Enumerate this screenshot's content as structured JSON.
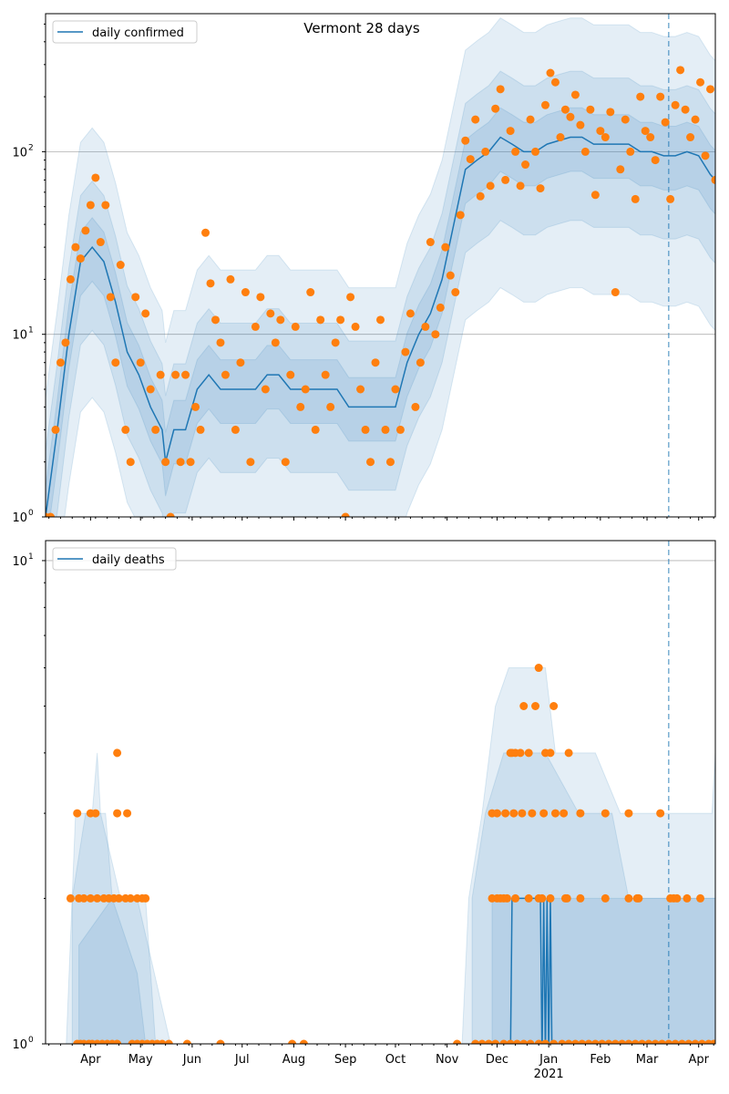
{
  "title": "Vermont 28 days",
  "colors": {
    "line": "#1f77b4",
    "points": "#ff7f0e",
    "band": "#1f77b4",
    "grid": "#b0b0b0"
  },
  "chart_data": [
    {
      "type": "line",
      "panel": "top",
      "legend": "daily confirmed",
      "legend_position": "top-left",
      "yscale": "log",
      "ylim": [
        1,
        570
      ],
      "yticks": [
        {
          "value": 1,
          "label": "10",
          "exp": "0"
        },
        {
          "value": 10,
          "label": "10",
          "exp": "1"
        },
        {
          "value": 100,
          "label": "10",
          "exp": "2"
        }
      ],
      "grid": "y-major",
      "x_start_date": "2020-03-05",
      "x_unit": "days since start",
      "xlim": [
        0,
        402
      ],
      "vline_day": 374,
      "line": [
        [
          0,
          1
        ],
        [
          7,
          3
        ],
        [
          14,
          10
        ],
        [
          21,
          25
        ],
        [
          28,
          30
        ],
        [
          35,
          25
        ],
        [
          42,
          15
        ],
        [
          49,
          8
        ],
        [
          56,
          6
        ],
        [
          63,
          4
        ],
        [
          70,
          3
        ],
        [
          72,
          2
        ],
        [
          77,
          3
        ],
        [
          84,
          3
        ],
        [
          91,
          5
        ],
        [
          98,
          6
        ],
        [
          105,
          5
        ],
        [
          112,
          5
        ],
        [
          119,
          5
        ],
        [
          126,
          5
        ],
        [
          133,
          6
        ],
        [
          140,
          6
        ],
        [
          147,
          5
        ],
        [
          154,
          5
        ],
        [
          161,
          5
        ],
        [
          168,
          5
        ],
        [
          175,
          5
        ],
        [
          182,
          4
        ],
        [
          189,
          4
        ],
        [
          196,
          4
        ],
        [
          203,
          4
        ],
        [
          210,
          4
        ],
        [
          217,
          7
        ],
        [
          224,
          10
        ],
        [
          231,
          13
        ],
        [
          238,
          20
        ],
        [
          245,
          40
        ],
        [
          252,
          80
        ],
        [
          259,
          90
        ],
        [
          266,
          100
        ],
        [
          273,
          120
        ],
        [
          280,
          110
        ],
        [
          287,
          100
        ],
        [
          294,
          100
        ],
        [
          301,
          110
        ],
        [
          308,
          115
        ],
        [
          315,
          120
        ],
        [
          322,
          120
        ],
        [
          329,
          110
        ],
        [
          336,
          110
        ],
        [
          343,
          110
        ],
        [
          350,
          110
        ],
        [
          357,
          100
        ],
        [
          364,
          100
        ],
        [
          371,
          95
        ],
        [
          378,
          95
        ],
        [
          385,
          100
        ],
        [
          392,
          95
        ],
        [
          399,
          75
        ],
        [
          402,
          70
        ]
      ],
      "bands": [
        {
          "name": "outer",
          "lo_factor": 0.15,
          "hi_factor": 4.5
        },
        {
          "name": "middle",
          "lo_factor": 0.35,
          "hi_factor": 2.3
        },
        {
          "name": "inner",
          "lo_factor": 0.65,
          "hi_factor": 1.45
        }
      ],
      "points_step_days": 3,
      "points": [
        1,
        1,
        3,
        7,
        9,
        20,
        30,
        26,
        37,
        51,
        72,
        32,
        51,
        16,
        7,
        24,
        3,
        2,
        16,
        7,
        13,
        5,
        3,
        6,
        2,
        1,
        6,
        2,
        6,
        2,
        4,
        3,
        36,
        19,
        12,
        9,
        6,
        20,
        3,
        7,
        17,
        2,
        11,
        16,
        5,
        13,
        9,
        12,
        2,
        6,
        11,
        4,
        5,
        17,
        3,
        12,
        6,
        4,
        9,
        12,
        1,
        16,
        11,
        5,
        3,
        2,
        7,
        12,
        3,
        2,
        5,
        3,
        8,
        13,
        4,
        7,
        11,
        32,
        10,
        14,
        30,
        21,
        17,
        45,
        115,
        91,
        150,
        57,
        100,
        65,
        172,
        220,
        70,
        130,
        100,
        65,
        85,
        150,
        100,
        63,
        180,
        270,
        240,
        120,
        170,
        155,
        205,
        140,
        100,
        170,
        58,
        130,
        120,
        165,
        17,
        80,
        150,
        100,
        55,
        200,
        130,
        120,
        90,
        200,
        145,
        55,
        180,
        280,
        170,
        120,
        150,
        240,
        95,
        220,
        70,
        230
      ]
    },
    {
      "type": "line",
      "panel": "bottom",
      "legend": "daily deaths",
      "legend_position": "top-left",
      "yscale": "log",
      "ylim": [
        1,
        11
      ],
      "yticks": [
        {
          "value": 1,
          "label": "10",
          "exp": "0"
        },
        {
          "value": 10,
          "label": "10",
          "exp": "1"
        }
      ],
      "grid": "y-major",
      "xlim": [
        0,
        402
      ],
      "vline_day": 374,
      "xticks": [
        {
          "day": 27,
          "label": "Apr"
        },
        {
          "day": 57,
          "label": "May"
        },
        {
          "day": 88,
          "label": "Jun"
        },
        {
          "day": 118,
          "label": "Jul"
        },
        {
          "day": 149,
          "label": "Aug"
        },
        {
          "day": 180,
          "label": "Sep"
        },
        {
          "day": 210,
          "label": "Oct"
        },
        {
          "day": 241,
          "label": "Nov"
        },
        {
          "day": 271,
          "label": "Dec"
        },
        {
          "day": 302,
          "label": "Jan",
          "sub": "2021"
        },
        {
          "day": 333,
          "label": "Feb"
        },
        {
          "day": 361,
          "label": "Mar"
        },
        {
          "day": 392,
          "label": "Apr"
        }
      ],
      "line": [
        [
          0,
          0
        ],
        [
          279,
          0
        ],
        [
          280,
          2
        ],
        [
          297,
          2
        ],
        [
          298,
          0
        ],
        [
          299,
          2
        ],
        [
          300,
          0
        ],
        [
          301,
          2
        ],
        [
          302,
          0
        ],
        [
          303,
          2
        ],
        [
          304,
          0
        ],
        [
          402,
          0
        ]
      ],
      "bands": [
        {
          "name": "outer",
          "segments": [
            [
              [
                12,
                1,
                0
              ],
              [
                18,
                1,
                3
              ],
              [
                28,
                1,
                3
              ],
              [
                31,
                1,
                4
              ],
              [
                33,
                1,
                3
              ],
              [
                45,
                1,
                2
              ],
              [
                55,
                1,
                2
              ],
              [
                75,
                1,
                1
              ]
            ],
            [
              [
                250,
                1,
                1
              ],
              [
                254,
                1,
                2
              ],
              [
                262,
                1,
                3
              ],
              [
                270,
                1,
                5
              ],
              [
                278,
                1,
                6
              ],
              [
                300,
                1,
                6
              ],
              [
                306,
                1,
                4
              ],
              [
                330,
                1,
                4
              ],
              [
                345,
                1,
                3
              ],
              [
                360,
                1,
                3
              ],
              [
                400,
                1,
                3
              ],
              [
                402,
                1,
                4
              ]
            ]
          ]
        },
        {
          "name": "middle",
          "segments": [
            [
              [
                16,
                1,
                2
              ],
              [
                24,
                1,
                3
              ],
              [
                36,
                1,
                3
              ],
              [
                40,
                1,
                2
              ],
              [
                60,
                1,
                2
              ],
              [
                66,
                1,
                1
              ]
            ],
            [
              [
                256,
                1,
                2
              ],
              [
                264,
                1,
                3
              ],
              [
                275,
                1,
                4
              ],
              [
                300,
                1,
                4
              ],
              [
                320,
                1,
                3
              ],
              [
                340,
                1,
                3
              ],
              [
                350,
                1,
                2
              ],
              [
                402,
                1,
                2
              ]
            ]
          ]
        },
        {
          "name": "inner",
          "segments": [
            [
              [
                20,
                1,
                1.6
              ],
              [
                40,
                1,
                2
              ],
              [
                55,
                1,
                1.4
              ],
              [
                60,
                1,
                1
              ]
            ],
            [
              [
                268,
                1,
                2
              ],
              [
                300,
                1,
                2
              ],
              [
                340,
                1,
                2
              ],
              [
                402,
                1,
                2
              ]
            ]
          ]
        }
      ],
      "points": [
        [
          19,
          1
        ],
        [
          21,
          1
        ],
        [
          23,
          1
        ],
        [
          26,
          1
        ],
        [
          28,
          1
        ],
        [
          31,
          1
        ],
        [
          34,
          1
        ],
        [
          37,
          1
        ],
        [
          40,
          1
        ],
        [
          43,
          1
        ],
        [
          52,
          1
        ],
        [
          55,
          1
        ],
        [
          58,
          1
        ],
        [
          61,
          1
        ],
        [
          64,
          1
        ],
        [
          67,
          1
        ],
        [
          70,
          1
        ],
        [
          74,
          1
        ],
        [
          85,
          1
        ],
        [
          105,
          1
        ],
        [
          148,
          1
        ],
        [
          155,
          1
        ],
        [
          247,
          1
        ],
        [
          258,
          1
        ],
        [
          262,
          1
        ],
        [
          266,
          1
        ],
        [
          270,
          1
        ],
        [
          275,
          1
        ],
        [
          279,
          1
        ],
        [
          283,
          1
        ],
        [
          287,
          1
        ],
        [
          291,
          1
        ],
        [
          296,
          1
        ],
        [
          300,
          1
        ],
        [
          305,
          1
        ],
        [
          310,
          1
        ],
        [
          314,
          1
        ],
        [
          318,
          1
        ],
        [
          322,
          1
        ],
        [
          326,
          1
        ],
        [
          330,
          1
        ],
        [
          334,
          1
        ],
        [
          338,
          1
        ],
        [
          342,
          1
        ],
        [
          346,
          1
        ],
        [
          350,
          1
        ],
        [
          354,
          1
        ],
        [
          358,
          1
        ],
        [
          362,
          1
        ],
        [
          366,
          1
        ],
        [
          370,
          1
        ],
        [
          374,
          1
        ],
        [
          378,
          1
        ],
        [
          382,
          1
        ],
        [
          386,
          1
        ],
        [
          390,
          1
        ],
        [
          394,
          1
        ],
        [
          398,
          1
        ],
        [
          401,
          1
        ],
        [
          15,
          2
        ],
        [
          20,
          2
        ],
        [
          23,
          2
        ],
        [
          27,
          2
        ],
        [
          31,
          2
        ],
        [
          35,
          2
        ],
        [
          38,
          2
        ],
        [
          41,
          2
        ],
        [
          44,
          2
        ],
        [
          48,
          2
        ],
        [
          51,
          2
        ],
        [
          55,
          2
        ],
        [
          58,
          2
        ],
        [
          60,
          2
        ],
        [
          268,
          2
        ],
        [
          271,
          2
        ],
        [
          273,
          2
        ],
        [
          275,
          2
        ],
        [
          277,
          2
        ],
        [
          282,
          2
        ],
        [
          290,
          2
        ],
        [
          296,
          2
        ],
        [
          298,
          2
        ],
        [
          303,
          2
        ],
        [
          312,
          2
        ],
        [
          313,
          2
        ],
        [
          321,
          2
        ],
        [
          336,
          2
        ],
        [
          350,
          2
        ],
        [
          355,
          2
        ],
        [
          356,
          2
        ],
        [
          375,
          2
        ],
        [
          377,
          2
        ],
        [
          379,
          2
        ],
        [
          385,
          2
        ],
        [
          393,
          2
        ],
        [
          19,
          3
        ],
        [
          27,
          3
        ],
        [
          30,
          3
        ],
        [
          43,
          3
        ],
        [
          49,
          3
        ],
        [
          268,
          3
        ],
        [
          271,
          3
        ],
        [
          276,
          3
        ],
        [
          281,
          3
        ],
        [
          286,
          3
        ],
        [
          292,
          3
        ],
        [
          299,
          3
        ],
        [
          306,
          3
        ],
        [
          311,
          3
        ],
        [
          321,
          3
        ],
        [
          336,
          3
        ],
        [
          350,
          3
        ],
        [
          369,
          3
        ],
        [
          43,
          4
        ],
        [
          279,
          4
        ],
        [
          280,
          4
        ],
        [
          282,
          4
        ],
        [
          285,
          4
        ],
        [
          290,
          4
        ],
        [
          300,
          4
        ],
        [
          303,
          4
        ],
        [
          314,
          4
        ],
        [
          287,
          5
        ],
        [
          294,
          5
        ],
        [
          305,
          5
        ],
        [
          296,
          6
        ]
      ]
    }
  ]
}
